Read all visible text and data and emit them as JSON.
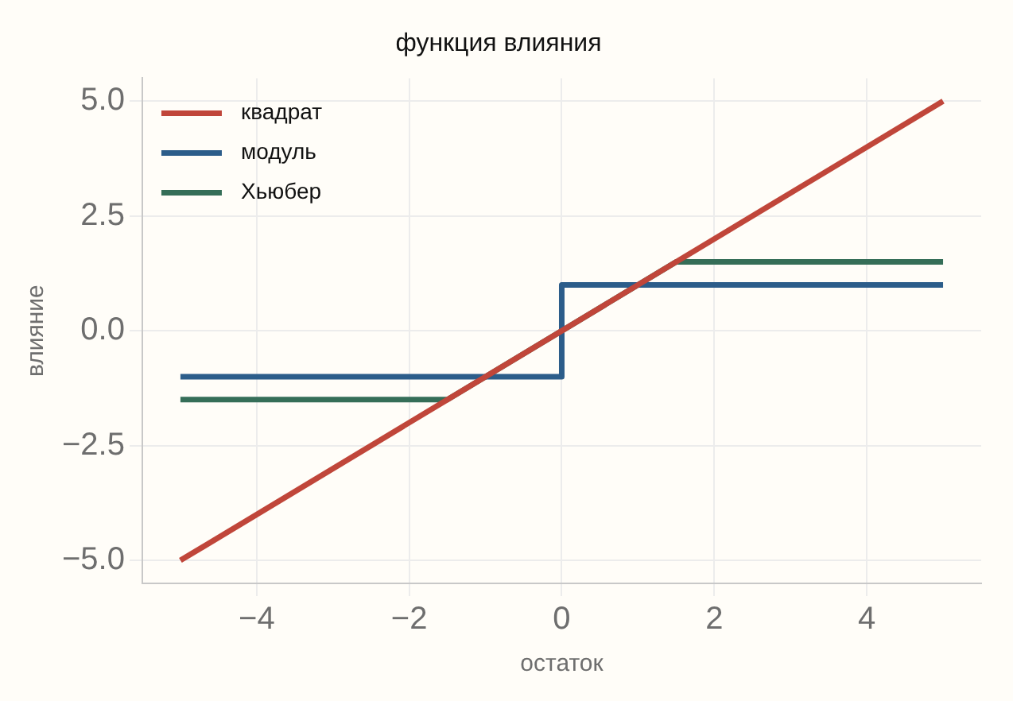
{
  "chart_data": {
    "type": "line",
    "title": "функция влияния",
    "xlabel": "остаток",
    "ylabel": "влияние",
    "xlim": [
      -5.5,
      5.5
    ],
    "ylim": [
      -5.5,
      5.5
    ],
    "xticks": [
      {
        "value": -4,
        "label": "−4"
      },
      {
        "value": -2,
        "label": "−2"
      },
      {
        "value": 0,
        "label": "0"
      },
      {
        "value": 2,
        "label": "2"
      },
      {
        "value": 4,
        "label": "4"
      }
    ],
    "yticks": [
      {
        "value": -5,
        "label": "−5.0"
      },
      {
        "value": -2.5,
        "label": "−2.5"
      },
      {
        "value": 0,
        "label": "0.0"
      },
      {
        "value": 2.5,
        "label": "2.5"
      },
      {
        "value": 5,
        "label": "5.0"
      }
    ],
    "series": [
      {
        "name": "квадрат",
        "color": "#c0463a",
        "x": [
          -5,
          5
        ],
        "values": [
          -5,
          5
        ]
      },
      {
        "name": "модуль",
        "color": "#2c5d8a",
        "x": [
          -5,
          0,
          0,
          5
        ],
        "values": [
          -1,
          -1,
          1,
          1
        ]
      },
      {
        "name": "Хьюбер",
        "color": "#356e58",
        "x": [
          -5,
          -1.5,
          1.5,
          5
        ],
        "values": [
          -1.5,
          -1.5,
          1.5,
          1.5
        ]
      }
    ],
    "grid": true,
    "legend": "top left",
    "marker": "none",
    "line_style": "solid"
  }
}
